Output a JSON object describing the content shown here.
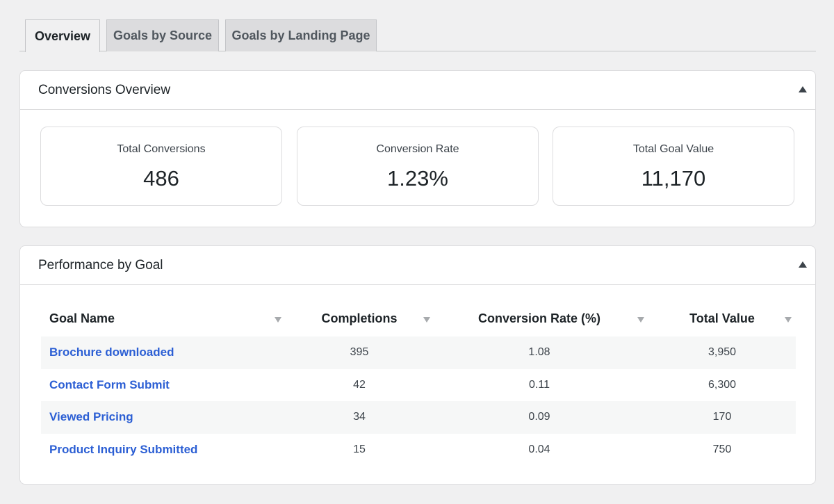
{
  "tabs": [
    "Overview",
    "Goals by Source",
    "Goals by Landing Page"
  ],
  "overview": {
    "title": "Conversions Overview",
    "stats": [
      {
        "label": "Total Conversions",
        "value": "486"
      },
      {
        "label": "Conversion Rate",
        "value": "1.23%"
      },
      {
        "label": "Total Goal Value",
        "value": "11,170"
      }
    ]
  },
  "performance": {
    "title": "Performance by Goal",
    "columns": [
      "Goal Name",
      "Completions",
      "Conversion Rate (%)",
      "Total Value"
    ],
    "rows": [
      {
        "name": "Brochure downloaded",
        "completions": "395",
        "rate": "1.08",
        "value": "3,950"
      },
      {
        "name": "Contact Form Submit",
        "completions": "42",
        "rate": "0.11",
        "value": "6,300"
      },
      {
        "name": "Viewed Pricing",
        "completions": "34",
        "rate": "0.09",
        "value": "170"
      },
      {
        "name": "Product Inquiry Submitted",
        "completions": "15",
        "rate": "0.04",
        "value": "750"
      }
    ]
  }
}
